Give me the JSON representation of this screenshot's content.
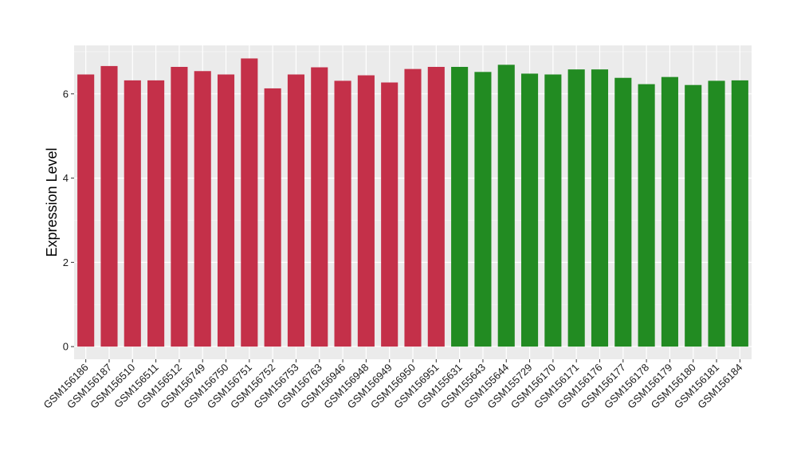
{
  "chart_data": {
    "type": "bar",
    "title": "",
    "xlabel": "",
    "ylabel": "Expression Level",
    "ylim": [
      -0.3,
      7.15
    ],
    "yticks": [
      0,
      2,
      4,
      6
    ],
    "grid": true,
    "background": "#ebebeb",
    "categories": [
      "GSM156186",
      "GSM156187",
      "GSM156510",
      "GSM156511",
      "GSM156512",
      "GSM156749",
      "GSM156750",
      "GSM156751",
      "GSM156752",
      "GSM156753",
      "GSM156763",
      "GSM156946",
      "GSM156948",
      "GSM156949",
      "GSM156950",
      "GSM156951",
      "GSM155631",
      "GSM155643",
      "GSM155644",
      "GSM155729",
      "GSM156170",
      "GSM156171",
      "GSM156176",
      "GSM156177",
      "GSM156178",
      "GSM156179",
      "GSM156180",
      "GSM156181",
      "GSM156184"
    ],
    "values": [
      6.46,
      6.66,
      6.32,
      6.32,
      6.64,
      6.54,
      6.46,
      6.84,
      6.13,
      6.46,
      6.63,
      6.31,
      6.44,
      6.27,
      6.59,
      6.64,
      6.64,
      6.52,
      6.69,
      6.48,
      6.46,
      6.58,
      6.58,
      6.38,
      6.23,
      6.4,
      6.21,
      6.31,
      6.32
    ],
    "colors": [
      "#c43049",
      "#c43049",
      "#c43049",
      "#c43049",
      "#c43049",
      "#c43049",
      "#c43049",
      "#c43049",
      "#c43049",
      "#c43049",
      "#c43049",
      "#c43049",
      "#c43049",
      "#c43049",
      "#c43049",
      "#c43049",
      "#228b22",
      "#228b22",
      "#228b22",
      "#228b22",
      "#228b22",
      "#228b22",
      "#228b22",
      "#228b22",
      "#228b22",
      "#228b22",
      "#228b22",
      "#228b22",
      "#228b22"
    ]
  }
}
